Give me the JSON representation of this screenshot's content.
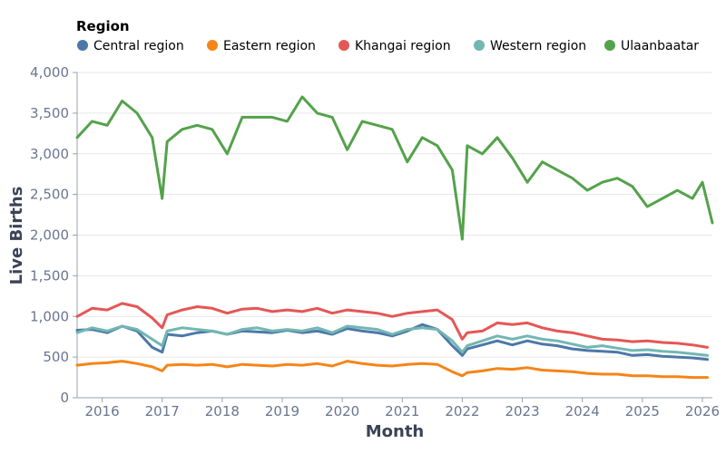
{
  "chart_data": {
    "type": "line",
    "xlabel": "Month",
    "ylabel": "Live Births",
    "xlim": [
      "2015-08",
      "2026-03"
    ],
    "ylim": [
      0,
      4000
    ],
    "y_ticks": [
      0,
      500,
      1000,
      1500,
      2000,
      2500,
      3000,
      3500,
      4000
    ],
    "y_tick_labels": [
      "0",
      "500",
      "1,000",
      "1,500",
      "2,000",
      "2,500",
      "3,000",
      "3,500",
      "4,000"
    ],
    "x_ticks": [
      "2016",
      "2017",
      "2018",
      "2019",
      "2020",
      "2021",
      "2022",
      "2023",
      "2024",
      "2025",
      "2026"
    ],
    "grid": "horizontal",
    "legend": {
      "title": "Region",
      "placement": "top-left",
      "entries": [
        "Central region",
        "Eastern region",
        "Khangai region",
        "Western region",
        "Ulaanbaatar"
      ]
    },
    "series": [
      {
        "name": "Central region",
        "color": "#4c78a8",
        "points": [
          [
            "2015-08",
            830
          ],
          [
            "2015-11",
            840
          ],
          [
            "2016-02",
            800
          ],
          [
            "2016-05",
            880
          ],
          [
            "2016-08",
            820
          ],
          [
            "2016-11",
            620
          ],
          [
            "2017-01",
            560
          ],
          [
            "2017-02",
            780
          ],
          [
            "2017-05",
            760
          ],
          [
            "2017-08",
            800
          ],
          [
            "2017-11",
            820
          ],
          [
            "2018-02",
            780
          ],
          [
            "2018-05",
            820
          ],
          [
            "2018-08",
            810
          ],
          [
            "2018-11",
            800
          ],
          [
            "2019-02",
            830
          ],
          [
            "2019-05",
            800
          ],
          [
            "2019-08",
            820
          ],
          [
            "2019-11",
            780
          ],
          [
            "2020-02",
            850
          ],
          [
            "2020-05",
            820
          ],
          [
            "2020-08",
            800
          ],
          [
            "2020-11",
            760
          ],
          [
            "2021-02",
            820
          ],
          [
            "2021-05",
            900
          ],
          [
            "2021-08",
            840
          ],
          [
            "2021-11",
            640
          ],
          [
            "2022-01",
            520
          ],
          [
            "2022-02",
            600
          ],
          [
            "2022-05",
            650
          ],
          [
            "2022-08",
            700
          ],
          [
            "2022-11",
            650
          ],
          [
            "2023-02",
            700
          ],
          [
            "2023-05",
            660
          ],
          [
            "2023-08",
            640
          ],
          [
            "2023-11",
            600
          ],
          [
            "2024-02",
            580
          ],
          [
            "2024-05",
            570
          ],
          [
            "2024-08",
            560
          ],
          [
            "2024-11",
            520
          ],
          [
            "2025-02",
            530
          ],
          [
            "2025-05",
            510
          ],
          [
            "2025-08",
            500
          ],
          [
            "2025-11",
            490
          ],
          [
            "2026-02",
            470
          ]
        ]
      },
      {
        "name": "Eastern region",
        "color": "#f58518",
        "points": [
          [
            "2015-08",
            400
          ],
          [
            "2015-11",
            420
          ],
          [
            "2016-02",
            430
          ],
          [
            "2016-05",
            450
          ],
          [
            "2016-08",
            420
          ],
          [
            "2016-11",
            380
          ],
          [
            "2017-01",
            330
          ],
          [
            "2017-02",
            400
          ],
          [
            "2017-05",
            410
          ],
          [
            "2017-08",
            400
          ],
          [
            "2017-11",
            410
          ],
          [
            "2018-02",
            380
          ],
          [
            "2018-05",
            410
          ],
          [
            "2018-08",
            400
          ],
          [
            "2018-11",
            390
          ],
          [
            "2019-02",
            410
          ],
          [
            "2019-05",
            400
          ],
          [
            "2019-08",
            420
          ],
          [
            "2019-11",
            390
          ],
          [
            "2020-02",
            450
          ],
          [
            "2020-05",
            420
          ],
          [
            "2020-08",
            400
          ],
          [
            "2020-11",
            390
          ],
          [
            "2021-02",
            410
          ],
          [
            "2021-05",
            420
          ],
          [
            "2021-08",
            410
          ],
          [
            "2021-11",
            320
          ],
          [
            "2022-01",
            270
          ],
          [
            "2022-02",
            310
          ],
          [
            "2022-05",
            330
          ],
          [
            "2022-08",
            360
          ],
          [
            "2022-11",
            350
          ],
          [
            "2023-02",
            370
          ],
          [
            "2023-05",
            340
          ],
          [
            "2023-08",
            330
          ],
          [
            "2023-11",
            320
          ],
          [
            "2024-02",
            300
          ],
          [
            "2024-05",
            290
          ],
          [
            "2024-08",
            290
          ],
          [
            "2024-11",
            270
          ],
          [
            "2025-02",
            270
          ],
          [
            "2025-05",
            260
          ],
          [
            "2025-08",
            260
          ],
          [
            "2025-11",
            250
          ],
          [
            "2026-02",
            250
          ]
        ]
      },
      {
        "name": "Khangai region",
        "color": "#e45756",
        "points": [
          [
            "2015-08",
            1000
          ],
          [
            "2015-11",
            1100
          ],
          [
            "2016-02",
            1080
          ],
          [
            "2016-05",
            1160
          ],
          [
            "2016-08",
            1120
          ],
          [
            "2016-11",
            980
          ],
          [
            "2017-01",
            860
          ],
          [
            "2017-02",
            1020
          ],
          [
            "2017-05",
            1080
          ],
          [
            "2017-08",
            1120
          ],
          [
            "2017-11",
            1100
          ],
          [
            "2018-02",
            1040
          ],
          [
            "2018-05",
            1090
          ],
          [
            "2018-08",
            1100
          ],
          [
            "2018-11",
            1060
          ],
          [
            "2019-02",
            1080
          ],
          [
            "2019-05",
            1060
          ],
          [
            "2019-08",
            1100
          ],
          [
            "2019-11",
            1040
          ],
          [
            "2020-02",
            1080
          ],
          [
            "2020-05",
            1060
          ],
          [
            "2020-08",
            1040
          ],
          [
            "2020-11",
            1000
          ],
          [
            "2021-02",
            1040
          ],
          [
            "2021-05",
            1060
          ],
          [
            "2021-08",
            1080
          ],
          [
            "2021-11",
            960
          ],
          [
            "2022-01",
            720
          ],
          [
            "2022-02",
            800
          ],
          [
            "2022-05",
            820
          ],
          [
            "2022-08",
            920
          ],
          [
            "2022-11",
            900
          ],
          [
            "2023-02",
            920
          ],
          [
            "2023-05",
            860
          ],
          [
            "2023-08",
            820
          ],
          [
            "2023-11",
            800
          ],
          [
            "2024-02",
            760
          ],
          [
            "2024-05",
            720
          ],
          [
            "2024-08",
            710
          ],
          [
            "2024-11",
            690
          ],
          [
            "2025-02",
            700
          ],
          [
            "2025-05",
            680
          ],
          [
            "2025-08",
            670
          ],
          [
            "2025-11",
            650
          ],
          [
            "2026-02",
            620
          ]
        ]
      },
      {
        "name": "Western region",
        "color": "#72b7b2",
        "points": [
          [
            "2015-08",
            800
          ],
          [
            "2015-11",
            860
          ],
          [
            "2016-02",
            820
          ],
          [
            "2016-05",
            880
          ],
          [
            "2016-08",
            840
          ],
          [
            "2016-11",
            720
          ],
          [
            "2017-01",
            640
          ],
          [
            "2017-02",
            820
          ],
          [
            "2017-05",
            860
          ],
          [
            "2017-08",
            840
          ],
          [
            "2017-11",
            820
          ],
          [
            "2018-02",
            780
          ],
          [
            "2018-05",
            840
          ],
          [
            "2018-08",
            860
          ],
          [
            "2018-11",
            820
          ],
          [
            "2019-02",
            840
          ],
          [
            "2019-05",
            820
          ],
          [
            "2019-08",
            860
          ],
          [
            "2019-11",
            800
          ],
          [
            "2020-02",
            880
          ],
          [
            "2020-05",
            860
          ],
          [
            "2020-08",
            840
          ],
          [
            "2020-11",
            780
          ],
          [
            "2021-02",
            840
          ],
          [
            "2021-05",
            860
          ],
          [
            "2021-08",
            840
          ],
          [
            "2021-11",
            700
          ],
          [
            "2022-01",
            560
          ],
          [
            "2022-02",
            640
          ],
          [
            "2022-05",
            700
          ],
          [
            "2022-08",
            760
          ],
          [
            "2022-11",
            720
          ],
          [
            "2023-02",
            760
          ],
          [
            "2023-05",
            720
          ],
          [
            "2023-08",
            700
          ],
          [
            "2023-11",
            660
          ],
          [
            "2024-02",
            620
          ],
          [
            "2024-05",
            640
          ],
          [
            "2024-08",
            610
          ],
          [
            "2024-11",
            580
          ],
          [
            "2025-02",
            590
          ],
          [
            "2025-05",
            570
          ],
          [
            "2025-08",
            560
          ],
          [
            "2025-11",
            540
          ],
          [
            "2026-02",
            520
          ]
        ]
      },
      {
        "name": "Ulaanbaatar",
        "color": "#54a24b",
        "points": [
          [
            "2015-08",
            3200
          ],
          [
            "2015-11",
            3400
          ],
          [
            "2016-02",
            3350
          ],
          [
            "2016-05",
            3650
          ],
          [
            "2016-08",
            3500
          ],
          [
            "2016-11",
            3200
          ],
          [
            "2017-01",
            2450
          ],
          [
            "2017-02",
            3150
          ],
          [
            "2017-05",
            3300
          ],
          [
            "2017-08",
            3350
          ],
          [
            "2017-11",
            3300
          ],
          [
            "2018-02",
            3000
          ],
          [
            "2018-05",
            3450
          ],
          [
            "2018-08",
            3450
          ],
          [
            "2018-11",
            3450
          ],
          [
            "2019-02",
            3400
          ],
          [
            "2019-05",
            3700
          ],
          [
            "2019-08",
            3500
          ],
          [
            "2019-11",
            3450
          ],
          [
            "2020-02",
            3050
          ],
          [
            "2020-05",
            3400
          ],
          [
            "2020-08",
            3350
          ],
          [
            "2020-11",
            3300
          ],
          [
            "2021-02",
            2900
          ],
          [
            "2021-05",
            3200
          ],
          [
            "2021-08",
            3100
          ],
          [
            "2021-11",
            2800
          ],
          [
            "2022-01",
            1950
          ],
          [
            "2022-02",
            3100
          ],
          [
            "2022-05",
            3000
          ],
          [
            "2022-08",
            3200
          ],
          [
            "2022-11",
            2950
          ],
          [
            "2023-02",
            2650
          ],
          [
            "2023-05",
            2900
          ],
          [
            "2023-08",
            2800
          ],
          [
            "2023-11",
            2700
          ],
          [
            "2024-02",
            2550
          ],
          [
            "2024-05",
            2650
          ],
          [
            "2024-08",
            2700
          ],
          [
            "2024-11",
            2600
          ],
          [
            "2025-02",
            2350
          ],
          [
            "2025-05",
            2450
          ],
          [
            "2025-08",
            2550
          ],
          [
            "2025-11",
            2450
          ],
          [
            "2026-01",
            2650
          ],
          [
            "2026-03",
            2150
          ]
        ]
      }
    ]
  }
}
